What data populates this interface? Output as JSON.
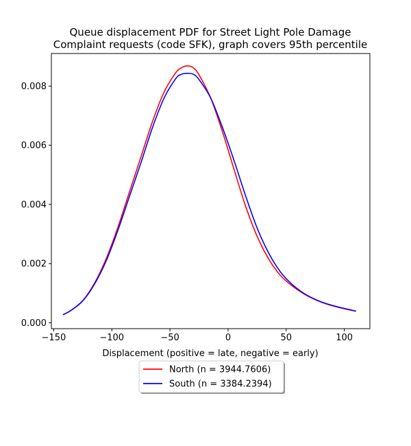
{
  "chart_data": {
    "type": "line",
    "title": "Queue displacement PDF for Street Light Pole Damage\nComplaint  requests (code SFK), graph covers 95th percentile",
    "xlabel": "Displacement (positive = late, negative = early)",
    "ylabel": "",
    "xlim": [
      -152,
      122
    ],
    "ylim": [
      -0.0002,
      0.0091
    ],
    "xticks": [
      -150,
      -100,
      -50,
      0,
      50,
      100
    ],
    "xtick_labels": [
      "−150",
      "−100",
      "−50",
      "0",
      "50",
      "100"
    ],
    "yticks": [
      0.0,
      0.002,
      0.004,
      0.006,
      0.008
    ],
    "ytick_labels": [
      "0.000",
      "0.002",
      "0.004",
      "0.006",
      "0.008"
    ],
    "grid": false,
    "legend_position": "below-center",
    "series": [
      {
        "name": "North (n = 3944.7606)",
        "color": "#ff0000",
        "x": [
          -142,
          -135,
          -125,
          -115,
          -105,
          -95,
          -85,
          -75,
          -65,
          -55,
          -45,
          -40,
          -35,
          -30,
          -25,
          -15,
          -5,
          5,
          15,
          25,
          35,
          45,
          55,
          65,
          75,
          85,
          95,
          105,
          110
        ],
        "y": [
          0.00027,
          0.00042,
          0.00075,
          0.00133,
          0.00215,
          0.0032,
          0.0044,
          0.0056,
          0.0068,
          0.0078,
          0.00845,
          0.00862,
          0.00868,
          0.00862,
          0.00838,
          0.0076,
          0.00648,
          0.0052,
          0.00395,
          0.00292,
          0.00215,
          0.0016,
          0.00125,
          0.00098,
          0.00078,
          0.00063,
          0.00052,
          0.00043,
          0.00039
        ]
      },
      {
        "name": "South (n = 3384.2394)",
        "color": "#0000ff",
        "x": [
          -142,
          -135,
          -125,
          -115,
          -105,
          -95,
          -85,
          -75,
          -65,
          -55,
          -45,
          -40,
          -35,
          -30,
          -25,
          -15,
          -5,
          5,
          15,
          25,
          35,
          45,
          55,
          65,
          75,
          85,
          95,
          105,
          110
        ],
        "y": [
          0.00027,
          0.00042,
          0.00074,
          0.0013,
          0.00208,
          0.0031,
          0.00425,
          0.0054,
          0.0066,
          0.0076,
          0.00825,
          0.0084,
          0.00843,
          0.0084,
          0.00822,
          0.0076,
          0.00662,
          0.0055,
          0.0043,
          0.0032,
          0.00235,
          0.00172,
          0.0013,
          0.001,
          0.00079,
          0.00064,
          0.00053,
          0.00044,
          0.00039
        ]
      }
    ]
  }
}
